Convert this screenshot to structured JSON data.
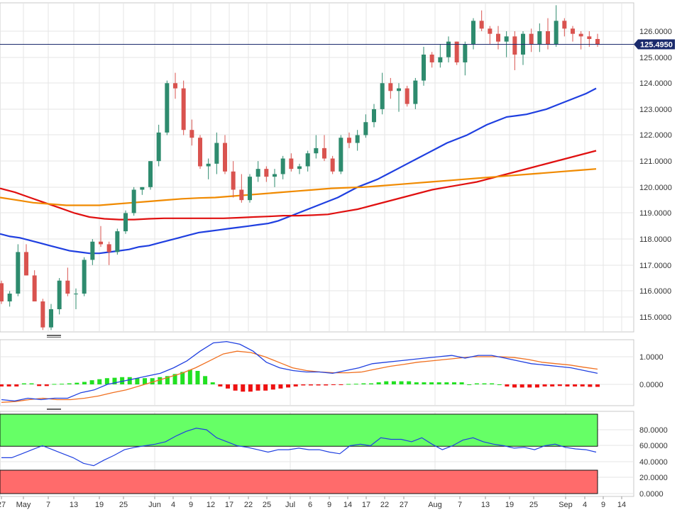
{
  "chart_data": [
    {
      "type": "candlestick",
      "panel": "price",
      "y_ticks": [
        "126.0000",
        "125.0000",
        "124.0000",
        "123.0000",
        "122.0000",
        "121.0000",
        "120.0000",
        "119.0000",
        "118.0000",
        "117.0000",
        "116.0000",
        "115.0000"
      ],
      "ylim": [
        114.4,
        127.2
      ],
      "last_price": "125.4950",
      "last_price_value": 125.495,
      "candles": [
        [
          116.3,
          116.4,
          115.5,
          115.6
        ],
        [
          115.6,
          116.0,
          115.4,
          115.9
        ],
        [
          115.9,
          117.8,
          115.8,
          117.5
        ],
        [
          117.5,
          117.8,
          116.6,
          116.6
        ],
        [
          116.6,
          116.8,
          115.6,
          115.6
        ],
        [
          115.6,
          115.7,
          114.5,
          114.6
        ],
        [
          114.6,
          115.5,
          114.5,
          115.3
        ],
        [
          115.3,
          116.5,
          115.1,
          116.4
        ],
        [
          116.4,
          116.9,
          115.8,
          115.9
        ],
        [
          115.9,
          116.1,
          115.3,
          115.9
        ],
        [
          115.9,
          117.3,
          115.8,
          117.2
        ],
        [
          117.2,
          118.0,
          117.0,
          117.9
        ],
        [
          117.9,
          118.5,
          117.7,
          117.8
        ],
        [
          117.8,
          117.9,
          117.0,
          117.5
        ],
        [
          117.5,
          118.4,
          117.4,
          118.3
        ],
        [
          118.3,
          119.1,
          118.2,
          119.0
        ],
        [
          119.0,
          120.0,
          118.9,
          119.9
        ],
        [
          119.9,
          120.0,
          119.7,
          120.0
        ],
        [
          120.0,
          121.0,
          119.9,
          121.0
        ],
        [
          121.0,
          122.4,
          120.8,
          122.1
        ],
        [
          122.1,
          124.1,
          122.0,
          124.0
        ],
        [
          124.0,
          124.4,
          123.4,
          123.8
        ],
        [
          123.8,
          124.1,
          122.0,
          122.2
        ],
        [
          122.2,
          122.6,
          121.6,
          121.9
        ],
        [
          121.9,
          122.0,
          120.7,
          120.8
        ],
        [
          120.8,
          121.1,
          120.3,
          120.9
        ],
        [
          120.9,
          122.1,
          120.5,
          121.7
        ],
        [
          121.7,
          122.0,
          120.5,
          120.6
        ],
        [
          120.6,
          121.0,
          119.6,
          119.9
        ],
        [
          119.9,
          120.5,
          119.4,
          119.5
        ],
        [
          119.5,
          120.5,
          119.4,
          120.4
        ],
        [
          120.4,
          121.0,
          120.2,
          120.7
        ],
        [
          120.7,
          120.8,
          120.2,
          120.4
        ],
        [
          120.4,
          120.7,
          120.0,
          120.5
        ],
        [
          120.5,
          121.2,
          120.3,
          121.1
        ],
        [
          121.1,
          121.3,
          120.6,
          120.7
        ],
        [
          120.7,
          120.9,
          120.5,
          120.8
        ],
        [
          120.8,
          121.4,
          120.6,
          121.3
        ],
        [
          121.3,
          122.0,
          121.1,
          121.5
        ],
        [
          121.5,
          122.0,
          121.0,
          121.1
        ],
        [
          121.1,
          121.2,
          120.5,
          120.6
        ],
        [
          120.6,
          122.0,
          120.5,
          121.9
        ],
        [
          121.9,
          122.1,
          121.5,
          121.7
        ],
        [
          121.7,
          122.2,
          121.4,
          122.0
        ],
        [
          122.0,
          122.8,
          121.9,
          122.5
        ],
        [
          122.5,
          123.2,
          122.3,
          123.0
        ],
        [
          123.0,
          124.4,
          122.8,
          124.0
        ],
        [
          124.0,
          124.2,
          123.4,
          123.7
        ],
        [
          123.7,
          124.0,
          122.9,
          123.8
        ],
        [
          123.8,
          123.9,
          123.1,
          123.2
        ],
        [
          123.2,
          124.2,
          123.0,
          124.1
        ],
        [
          124.1,
          125.4,
          123.9,
          125.1
        ],
        [
          125.1,
          125.2,
          124.6,
          124.8
        ],
        [
          124.8,
          125.5,
          124.6,
          125.0
        ],
        [
          125.0,
          125.8,
          124.8,
          125.6
        ],
        [
          125.6,
          125.6,
          124.7,
          124.8
        ],
        [
          124.8,
          125.6,
          124.3,
          125.5
        ],
        [
          125.5,
          126.5,
          125.3,
          126.4
        ],
        [
          126.4,
          126.8,
          126.0,
          126.1
        ],
        [
          126.1,
          126.2,
          125.5,
          125.9
        ],
        [
          125.9,
          126.2,
          125.3,
          125.6
        ],
        [
          125.6,
          126.0,
          125.0,
          125.8
        ],
        [
          125.8,
          126.0,
          124.5,
          125.1
        ],
        [
          125.1,
          126.0,
          124.7,
          125.9
        ],
        [
          125.9,
          126.1,
          125.2,
          125.5
        ],
        [
          125.5,
          126.3,
          125.2,
          126.0
        ],
        [
          126.0,
          126.5,
          125.3,
          125.5
        ],
        [
          125.5,
          127.0,
          125.4,
          126.4
        ],
        [
          126.4,
          126.5,
          125.8,
          126.1
        ],
        [
          126.1,
          126.2,
          125.6,
          125.9
        ],
        [
          125.9,
          126.0,
          125.3,
          125.8
        ],
        [
          125.8,
          126.0,
          125.4,
          125.7
        ],
        [
          125.7,
          125.9,
          125.4,
          125.5
        ]
      ],
      "series": [
        {
          "color": "#1f3fe0",
          "values": [
            118.2,
            118.1,
            118.05,
            117.95,
            117.85,
            117.75,
            117.65,
            117.55,
            117.5,
            117.45,
            117.45,
            117.5,
            117.55,
            117.6,
            117.7,
            117.75,
            117.85,
            117.95,
            118.05,
            118.15,
            118.25,
            118.3,
            118.35,
            118.4,
            118.45,
            118.5,
            118.55,
            118.6,
            118.7,
            118.85,
            119.0,
            119.15,
            119.3,
            119.45,
            119.6,
            119.8,
            120.0,
            120.15,
            120.3,
            120.5,
            120.7,
            120.9,
            121.1,
            121.3,
            121.5,
            121.7,
            121.85,
            122.0,
            122.2,
            122.4,
            122.55,
            122.7,
            122.75,
            122.8,
            122.9,
            123.0,
            123.15,
            123.3,
            123.45,
            123.6,
            123.8
          ]
        },
        {
          "color": "#e01010",
          "values": [
            119.95,
            119.8,
            119.6,
            119.4,
            119.2,
            119.0,
            118.85,
            118.78,
            118.75,
            118.75,
            118.78,
            118.8,
            118.8,
            118.8,
            118.8,
            118.8,
            118.82,
            118.85,
            118.87,
            118.9,
            118.9,
            118.92,
            118.95,
            119.05,
            119.15,
            119.3,
            119.45,
            119.6,
            119.75,
            119.9,
            120.0,
            120.1,
            120.2,
            120.35,
            120.5,
            120.65,
            120.8,
            120.95,
            121.1,
            121.25,
            121.4
          ]
        },
        {
          "color": "#f08a00",
          "values": [
            119.6,
            119.5,
            119.4,
            119.35,
            119.3,
            119.3,
            119.3,
            119.35,
            119.4,
            119.45,
            119.5,
            119.55,
            119.58,
            119.6,
            119.65,
            119.7,
            119.75,
            119.8,
            119.85,
            119.9,
            119.95,
            119.98,
            120.0,
            120.05,
            120.1,
            120.15,
            120.2,
            120.25,
            120.3,
            120.35,
            120.4,
            120.45,
            120.5,
            120.55,
            120.6,
            120.65,
            120.7
          ]
        }
      ]
    },
    {
      "type": "macd",
      "panel": "indicator",
      "y_ticks": [
        "1.0000",
        "0.0000"
      ],
      "ylim": [
        -0.75,
        1.6
      ],
      "macd_line": [
        -0.55,
        -0.6,
        -0.5,
        -0.55,
        -0.5,
        -0.5,
        -0.3,
        -0.2,
        0.0,
        0.1,
        0.2,
        0.3,
        0.4,
        0.6,
        0.85,
        1.2,
        1.5,
        1.55,
        1.45,
        1.2,
        0.8,
        0.6,
        0.5,
        0.45,
        0.45,
        0.4,
        0.5,
        0.6,
        0.75,
        0.8,
        0.85,
        0.9,
        0.95,
        1.0,
        1.05,
        0.95,
        1.05,
        1.05,
        0.95,
        0.85,
        0.75,
        0.7,
        0.65,
        0.6,
        0.5,
        0.4
      ],
      "signal_line": [
        -0.65,
        -0.62,
        -0.55,
        -0.5,
        -0.55,
        -0.55,
        -0.5,
        -0.42,
        -0.3,
        -0.2,
        -0.05,
        0.1,
        0.25,
        0.4,
        0.6,
        0.85,
        1.1,
        1.2,
        1.15,
        1.0,
        0.8,
        0.6,
        0.5,
        0.45,
        0.42,
        0.42,
        0.45,
        0.55,
        0.65,
        0.72,
        0.8,
        0.85,
        0.9,
        0.95,
        1.0,
        1.0,
        1.0,
        0.97,
        0.9,
        0.8,
        0.75,
        0.7,
        0.62,
        0.55
      ],
      "histogram": [
        -0.1,
        -0.1,
        -0.1,
        0.05,
        0.05,
        -0.08,
        -0.08,
        0.02,
        0.03,
        0.05,
        0.08,
        0.12,
        0.2,
        0.25,
        0.3,
        0.32,
        0.35,
        0.35,
        0.3,
        0.3,
        0.3,
        0.35,
        0.4,
        0.5,
        0.6,
        0.7,
        0.65,
        0.4,
        0.1,
        -0.1,
        -0.2,
        -0.3,
        -0.35,
        -0.35,
        -0.3,
        -0.3,
        -0.25,
        -0.2,
        -0.15,
        -0.1,
        -0.05,
        -0.05,
        -0.05,
        -0.05,
        -0.03,
        -0.03,
        0.02,
        0.03,
        0.05,
        0.05,
        0.1,
        0.15,
        0.15,
        0.15,
        0.15,
        0.1,
        0.1,
        0.1,
        0.1,
        0.1,
        0.1,
        0.1,
        0.0,
        0.05,
        0.05,
        0.05,
        0.0,
        -0.1,
        -0.15,
        -0.15,
        -0.15,
        -0.15,
        -0.1,
        -0.1,
        -0.08,
        -0.1,
        -0.1,
        -0.1,
        -0.12,
        -0.12
      ]
    },
    {
      "type": "line",
      "panel": "oscillator",
      "y_ticks": [
        "80.0000",
        "60.0000",
        "40.0000",
        "20.0000",
        "0.0000"
      ],
      "ylim": [
        0,
        100
      ],
      "upper_band": [
        70,
        100
      ],
      "lower_band": [
        0,
        30
      ],
      "values": [
        45,
        45,
        50,
        55,
        60,
        55,
        50,
        45,
        38,
        35,
        42,
        48,
        55,
        58,
        60,
        62,
        65,
        72,
        78,
        82,
        80,
        70,
        65,
        60,
        58,
        55,
        52,
        55,
        55,
        57,
        55,
        55,
        52,
        50,
        60,
        62,
        60,
        70,
        68,
        68,
        65,
        70,
        62,
        55,
        60,
        67,
        70,
        65,
        62,
        60,
        57,
        58,
        55,
        60,
        62,
        58,
        56,
        55,
        52
      ]
    },
    {
      "type": "x-axis",
      "dates": [
        "27",
        "May",
        "7",
        "13",
        "19",
        "25",
        "Jun",
        "4",
        "9",
        "12",
        "17",
        "22",
        "25",
        "Jul",
        "6",
        "9",
        "14",
        "17",
        "22",
        "27",
        "Aug",
        "7",
        "13",
        "19",
        "25",
        "Sep",
        "4",
        "9",
        "14"
      ]
    }
  ]
}
